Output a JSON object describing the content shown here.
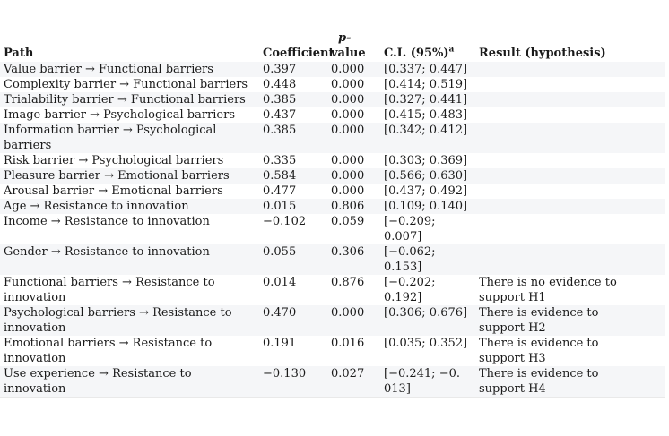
{
  "colors": {
    "stripe": "#f5f6f8",
    "text": "#1a1a1a"
  },
  "table": {
    "header": {
      "path": "Path",
      "coefficient": "Coefficient",
      "p_line1": "p-",
      "p_line2": "value",
      "ci": "C.I. (95%)",
      "ci_superscript": "a",
      "result": "Result (hypothesis)"
    },
    "rows": [
      {
        "path": "Value barrier → Functional barriers",
        "coefficient": "0.397",
        "p": "0.000",
        "ci": "[0.337; 0.447]",
        "result": ""
      },
      {
        "path": "Complexity barrier → Functional barriers",
        "coefficient": "0.448",
        "p": "0.000",
        "ci": "[0.414; 0.519]",
        "result": ""
      },
      {
        "path": "Trialability barrier → Functional barriers",
        "coefficient": "0.385",
        "p": "0.000",
        "ci": "[0.327; 0.441]",
        "result": ""
      },
      {
        "path": "Image barrier → Psychological barriers",
        "coefficient": "0.437",
        "p": "0.000",
        "ci": "[0.415; 0.483]",
        "result": ""
      },
      {
        "path": "Information barrier → Psychological\nbarriers",
        "coefficient": "0.385",
        "p": "0.000",
        "ci": "[0.342; 0.412]",
        "result": ""
      },
      {
        "path": "Risk barrier → Psychological barriers",
        "coefficient": "0.335",
        "p": "0.000",
        "ci": "[0.303; 0.369]",
        "result": ""
      },
      {
        "path": "Pleasure barrier → Emotional barriers",
        "coefficient": "0.584",
        "p": "0.000",
        "ci": "[0.566; 0.630]",
        "result": ""
      },
      {
        "path": "Arousal barrier → Emotional barriers",
        "coefficient": "0.477",
        "p": "0.000",
        "ci": "[0.437; 0.492]",
        "result": ""
      },
      {
        "path": "Age → Resistance to innovation",
        "coefficient": "0.015",
        "p": "0.806",
        "ci": "[0.109; 0.140]",
        "result": ""
      },
      {
        "path": "Income → Resistance to innovation",
        "coefficient": "−0.102",
        "p": "0.059",
        "ci": "[−0.209;\n0.007]",
        "result": ""
      },
      {
        "path": "Gender → Resistance to innovation",
        "coefficient": "0.055",
        "p": "0.306",
        "ci": "[−0.062;\n0.153]",
        "result": ""
      },
      {
        "path": "Functional barriers → Resistance to\ninnovation",
        "coefficient": "0.014",
        "p": "0.876",
        "ci": "[−0.202;\n0.192]",
        "result": "There is no evidence to\nsupport H1"
      },
      {
        "path": "Psychological barriers → Resistance to\ninnovation",
        "coefficient": "0.470",
        "p": "0.000",
        "ci": "[0.306; 0.676]",
        "result": "There is evidence to\nsupport H2"
      },
      {
        "path": "Emotional barriers → Resistance to\ninnovation",
        "coefficient": "0.191",
        "p": "0.016",
        "ci": "[0.035; 0.352]",
        "result": "There is evidence to\nsupport H3"
      },
      {
        "path": "Use experience → Resistance to innovation",
        "coefficient": "−0.130",
        "p": "0.027",
        "ci": "[−0.241; −0.\n013]",
        "result": "There is evidence to\nsupport H4"
      }
    ]
  }
}
